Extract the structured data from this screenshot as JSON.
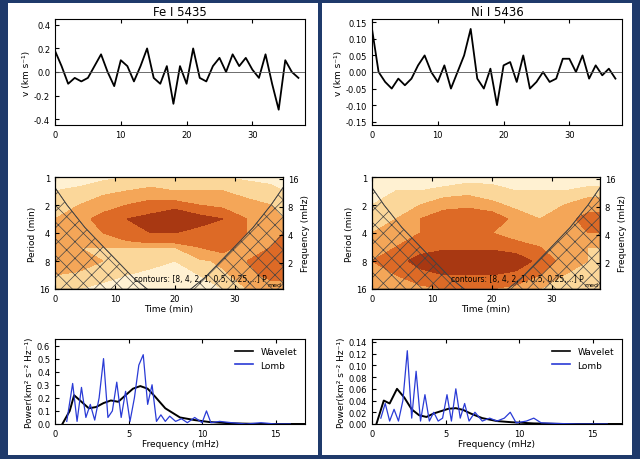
{
  "chart_data": [
    {
      "type": "line",
      "title": "Fe I 5435",
      "x": [
        0,
        1,
        2,
        3,
        4,
        5,
        6,
        7,
        8,
        9,
        10,
        11,
        12,
        13,
        14,
        15,
        16,
        17,
        18,
        19,
        20,
        21,
        22,
        23,
        24,
        25,
        26,
        27,
        28,
        29,
        30,
        31,
        32,
        33,
        34,
        35,
        36,
        37
      ],
      "values": [
        0.18,
        0.05,
        -0.1,
        -0.05,
        -0.08,
        -0.05,
        0.05,
        0.15,
        0.0,
        -0.12,
        0.1,
        0.05,
        -0.08,
        0.05,
        0.2,
        -0.05,
        -0.1,
        0.05,
        -0.27,
        0.05,
        -0.1,
        0.2,
        -0.05,
        -0.08,
        0.05,
        0.12,
        0.0,
        0.15,
        0.05,
        0.12,
        0.02,
        -0.05,
        0.15,
        -0.1,
        -0.32,
        0.1,
        0.0,
        -0.05
      ],
      "color": "#000000",
      "baseline": 0,
      "xlim": [
        0,
        38
      ],
      "xticks": [
        0,
        10,
        20,
        30
      ],
      "ylim": [
        -0.45,
        0.45
      ],
      "yticks": [
        -0.4,
        -0.2,
        0.0,
        0.2,
        0.4
      ],
      "ylabel": "v (km s⁻¹)"
    },
    {
      "type": "heatmap",
      "x": [
        0,
        4,
        8,
        12,
        16,
        20,
        24,
        28,
        32,
        36,
        38
      ],
      "y": [
        1,
        1.41,
        2,
        2.83,
        4,
        5.66,
        8,
        11.3,
        16
      ],
      "cells": [
        [
          0.3,
          0.3,
          0.4,
          0.5,
          0.5,
          0.6,
          0.5,
          0.5,
          0.4,
          0.4,
          0.3
        ],
        [
          0.5,
          0.6,
          0.8,
          1,
          1.2,
          1,
          1,
          1,
          0.8,
          0.6,
          0.5
        ],
        [
          0.8,
          1,
          1.5,
          2,
          2.5,
          2.5,
          2,
          1.5,
          1.2,
          1,
          0.8
        ],
        [
          1,
          1.5,
          2.5,
          4,
          5,
          8,
          5,
          4,
          2,
          1.5,
          1
        ],
        [
          1,
          1.5,
          2,
          3,
          4,
          4,
          3,
          2.5,
          2,
          2,
          2
        ],
        [
          1.5,
          1,
          1,
          1,
          1,
          1,
          2,
          2.5,
          1.5,
          2,
          2.5
        ],
        [
          2,
          1.5,
          1,
          0.7,
          0.6,
          0.5,
          0.8,
          1.2,
          2,
          4,
          4
        ],
        [
          1,
          0.8,
          0.6,
          0.5,
          0.4,
          0.4,
          0.5,
          0.8,
          1.5,
          2.5,
          2.5
        ],
        [
          0.5,
          0.5,
          0.4,
          0.3,
          0.3,
          0.3,
          0.3,
          0.5,
          1,
          1,
          1
        ]
      ],
      "levels": [
        0.25,
        0.5,
        1,
        2,
        4,
        8
      ],
      "coi": {
        "x": [
          0,
          2,
          5,
          9,
          13,
          19,
          25,
          29,
          33,
          36,
          38
        ],
        "y": [
          1.3,
          2,
          3.5,
          6.5,
          12,
          25,
          12,
          6.5,
          3.5,
          2,
          1.3
        ]
      },
      "log": "y",
      "xlim": [
        0,
        38
      ],
      "xticks": [
        0,
        10,
        20,
        30
      ],
      "ylim": [
        16,
        1
      ],
      "yticks": [
        1,
        2,
        4,
        8,
        16
      ],
      "y2lim": [
        1.04,
        16.67
      ],
      "y2ticks": [
        2,
        4,
        8,
        16
      ],
      "xlabel": "Time (min)",
      "ylabel": "Period (min)",
      "y2label": "Frequency (mHz)",
      "note": "contours: [8, 4, 2, 1, 0.5, 0.25,...] P",
      "note_sub": "med"
    },
    {
      "type": "line",
      "series": [
        {
          "name": "Wavelet",
          "color": "#000000",
          "x": [
            0.5,
            1.0,
            1.3,
            1.8,
            2.3,
            2.8,
            3.3,
            3.8,
            4.3,
            4.8,
            5.3,
            5.8,
            6.3,
            6.8,
            7.5,
            8.5,
            9.5,
            10.5,
            12,
            14,
            17
          ],
          "values": [
            0.0,
            0.1,
            0.22,
            0.17,
            0.12,
            0.13,
            0.16,
            0.18,
            0.17,
            0.22,
            0.27,
            0.29,
            0.27,
            0.21,
            0.12,
            0.05,
            0.03,
            0.015,
            0.005,
            0.0,
            0.0
          ]
        },
        {
          "name": "Lomb",
          "color": "#2a3bd6",
          "x": [
            0.8,
            1.2,
            1.5,
            1.8,
            2.1,
            2.4,
            2.7,
            3.0,
            3.3,
            3.6,
            3.9,
            4.2,
            4.5,
            4.8,
            5.1,
            5.4,
            5.7,
            6.0,
            6.3,
            6.6,
            6.9,
            7.2,
            7.5,
            7.8,
            8.2,
            8.6,
            9.0,
            9.5,
            10.0,
            10.3,
            10.6,
            11.2,
            12,
            13,
            14,
            15,
            16
          ],
          "values": [
            0.02,
            0.31,
            0.02,
            0.28,
            0.05,
            0.15,
            0.03,
            0.2,
            0.5,
            0.05,
            0.1,
            0.32,
            0.05,
            0.25,
            0.02,
            0.2,
            0.45,
            0.53,
            0.15,
            0.3,
            0.02,
            0.07,
            0.02,
            0.06,
            0.02,
            0.04,
            0.01,
            0.05,
            0.01,
            0.1,
            0.01,
            0.02,
            0.01,
            0.0,
            0.01,
            0.0,
            0.0
          ]
        }
      ],
      "xlim": [
        0,
        17
      ],
      "xticks": [
        0,
        5,
        10,
        15
      ],
      "ylim": [
        0,
        0.65
      ],
      "yticks": [
        0.0,
        0.1,
        0.2,
        0.3,
        0.4,
        0.5,
        0.6
      ],
      "xlabel": "Frequency (mHz)",
      "ylabel": "Power(km² s⁻² Hz⁻¹)",
      "legend": "upper right"
    },
    {
      "type": "line",
      "title": "Ni I 5436",
      "x": [
        0,
        1,
        2,
        3,
        4,
        5,
        6,
        7,
        8,
        9,
        10,
        11,
        12,
        13,
        14,
        15,
        16,
        17,
        18,
        19,
        20,
        21,
        22,
        23,
        24,
        25,
        26,
        27,
        28,
        29,
        30,
        31,
        32,
        33,
        34,
        35,
        36,
        37
      ],
      "values": [
        0.13,
        0.0,
        -0.03,
        -0.05,
        -0.02,
        -0.04,
        -0.02,
        0.02,
        0.05,
        0.0,
        -0.03,
        0.02,
        -0.05,
        0.0,
        0.05,
        0.13,
        -0.02,
        -0.05,
        0.01,
        -0.1,
        0.02,
        0.03,
        -0.03,
        0.05,
        -0.05,
        -0.03,
        0.0,
        -0.03,
        -0.02,
        0.04,
        0.04,
        0.0,
        0.05,
        -0.02,
        0.02,
        -0.01,
        0.01,
        -0.02
      ],
      "color": "#000000",
      "baseline": 0,
      "xlim": [
        0,
        38
      ],
      "xticks": [
        0,
        10,
        20,
        30
      ],
      "ylim": [
        -0.16,
        0.16
      ],
      "yticks": [
        {
          "value": -0.15,
          "label": "-0.15"
        },
        {
          "value": -0.1,
          "label": "-0.10"
        },
        {
          "value": -0.05,
          "label": "-0.05"
        },
        {
          "value": 0,
          "label": "0.00"
        },
        {
          "value": 0.05,
          "label": "0.05"
        },
        {
          "value": 0.1,
          "label": "0.10"
        },
        {
          "value": 0.15,
          "label": "0.15"
        }
      ],
      "ylabel": "v (km s⁻¹)"
    },
    {
      "type": "heatmap",
      "x": [
        0,
        4,
        8,
        12,
        16,
        20,
        24,
        28,
        32,
        36,
        38
      ],
      "y": [
        1,
        1.41,
        2,
        2.83,
        4,
        5.66,
        8,
        11.3,
        16
      ],
      "cells": [
        [
          0.3,
          0.3,
          0.3,
          0.3,
          0.3,
          0.4,
          0.3,
          0.3,
          0.3,
          0.3,
          0.3
        ],
        [
          0.4,
          0.5,
          0.5,
          0.6,
          0.8,
          0.6,
          0.5,
          0.5,
          0.5,
          0.6,
          0.6
        ],
        [
          0.5,
          0.6,
          1,
          1.5,
          1.5,
          1.2,
          0.8,
          0.8,
          1,
          1.5,
          1.5
        ],
        [
          0.8,
          1,
          2,
          3,
          4,
          3,
          1.5,
          1,
          1.5,
          2.5,
          2.5
        ],
        [
          1,
          1.5,
          2,
          2.5,
          2.5,
          2,
          1.5,
          1.5,
          2,
          2,
          2
        ],
        [
          1.5,
          2,
          3,
          3,
          3,
          3,
          2.5,
          2,
          1.5,
          1,
          1
        ],
        [
          2,
          3,
          5,
          8,
          8,
          8,
          6,
          3,
          1.5,
          1,
          1
        ],
        [
          1.5,
          2,
          3,
          4,
          4,
          4,
          3,
          2,
          1,
          0.8,
          0.8
        ],
        [
          1,
          1,
          1.5,
          2,
          2,
          2,
          1.5,
          1,
          0.6,
          0.5,
          0.5
        ]
      ],
      "levels": [
        0.25,
        0.5,
        1,
        2,
        4,
        8
      ],
      "coi": {
        "x": [
          0,
          2,
          5,
          9,
          13,
          19,
          25,
          29,
          33,
          36,
          38
        ],
        "y": [
          1.3,
          2,
          3.5,
          6.5,
          12,
          25,
          12,
          6.5,
          3.5,
          2,
          1.3
        ]
      },
      "log": "y",
      "xlim": [
        0,
        38
      ],
      "xticks": [
        0,
        10,
        20,
        30
      ],
      "ylim": [
        16,
        1
      ],
      "yticks": [
        1,
        2,
        4,
        8,
        16
      ],
      "y2lim": [
        1.04,
        16.67
      ],
      "y2ticks": [
        2,
        4,
        8,
        16
      ],
      "xlabel": "Time (min)",
      "ylabel": "Period (min)",
      "y2label": "Frequency (mHz)",
      "note": "contours: [8, 4, 2, 1, 0.5, 0.25,...] P",
      "note_sub": "med"
    },
    {
      "type": "line",
      "series": [
        {
          "name": "Wavelet",
          "color": "#000000",
          "x": [
            0.3,
            0.8,
            1.2,
            1.7,
            2.2,
            2.7,
            3.2,
            3.7,
            4.2,
            4.7,
            5.2,
            5.7,
            6.2,
            6.7,
            7.5,
            8.5,
            9.5,
            11,
            13,
            15,
            17
          ],
          "values": [
            0.0,
            0.04,
            0.035,
            0.06,
            0.045,
            0.025,
            0.015,
            0.012,
            0.018,
            0.022,
            0.026,
            0.027,
            0.024,
            0.018,
            0.01,
            0.005,
            0.003,
            0.001,
            0.0,
            0.0,
            0.0
          ]
        },
        {
          "name": "Lomb",
          "color": "#2a3bd6",
          "x": [
            0.6,
            0.9,
            1.2,
            1.5,
            1.8,
            2.1,
            2.4,
            2.7,
            3.0,
            3.3,
            3.6,
            3.9,
            4.2,
            4.5,
            4.8,
            5.1,
            5.4,
            5.7,
            6.0,
            6.3,
            6.6,
            7.0,
            7.5,
            8.0,
            8.5,
            9.0,
            9.4,
            9.8,
            10.5,
            11.0,
            11.5,
            12.5,
            14,
            16
          ],
          "values": [
            0.01,
            0.035,
            0.005,
            0.025,
            0.005,
            0.04,
            0.125,
            0.01,
            0.09,
            0.005,
            0.05,
            0.005,
            0.02,
            0.005,
            0.01,
            0.05,
            0.005,
            0.06,
            0.01,
            0.035,
            0.005,
            0.02,
            0.005,
            0.01,
            0.005,
            0.01,
            0.02,
            0.002,
            0.005,
            0.01,
            0.002,
            0.001,
            0.0,
            0.0
          ]
        }
      ],
      "xlim": [
        0,
        17
      ],
      "xticks": [
        0,
        5,
        10,
        15
      ],
      "ylim": [
        0,
        0.145
      ],
      "yticks": [
        {
          "value": 0,
          "label": "0.00"
        },
        {
          "value": 0.02,
          "label": "0.02"
        },
        {
          "value": 0.04,
          "label": "0.04"
        },
        {
          "value": 0.06,
          "label": "0.06"
        },
        {
          "value": 0.08,
          "label": "0.08"
        },
        {
          "value": 0.1,
          "label": "0.10"
        },
        {
          "value": 0.12,
          "label": "0.12"
        },
        {
          "value": 0.14,
          "label": "0.14"
        }
      ],
      "xlabel": "Frequency (mHz)",
      "ylabel": "Power(km² s⁻² Hz⁻¹)",
      "legend": "upper right"
    }
  ]
}
